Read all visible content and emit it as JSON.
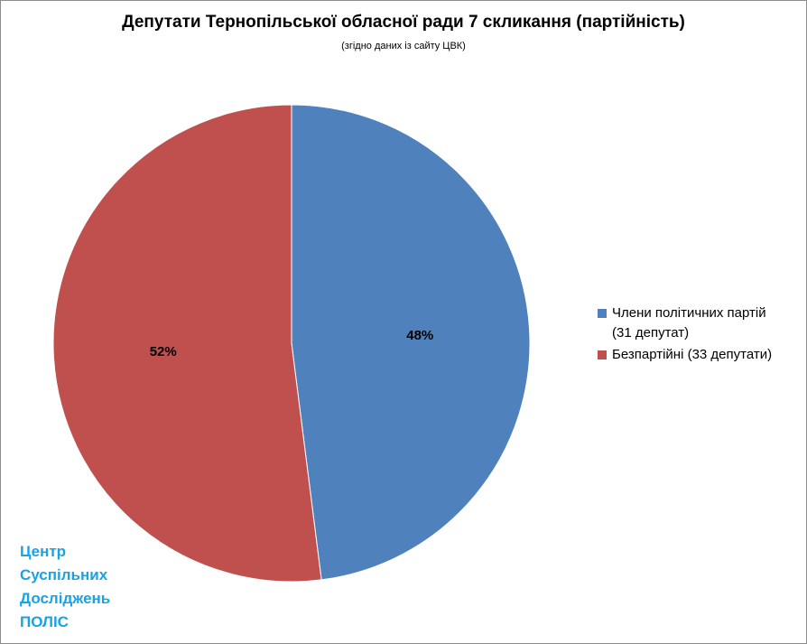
{
  "chart_data": {
    "type": "pie",
    "title": "Депутати Тернопільської обласної ради 7 скликання (партійність)",
    "subtitle": "(згідно даних із сайту ЦВК)",
    "slices": [
      {
        "label_line1": "Члени політичних партій",
        "label_line2": "(31 депутат)",
        "value": 48,
        "value_label": "48%",
        "color": "#4f81bd"
      },
      {
        "label_line1": "Безпартійні (33 депутати)",
        "label_line2": "",
        "value": 52,
        "value_label": "52%",
        "color": "#c0504d"
      }
    ],
    "legend_position": "right"
  },
  "watermark": {
    "lines": [
      "Центр",
      "Суспільних",
      "Досліджень",
      "ПОЛІС"
    ],
    "color": "#17a3e6"
  }
}
